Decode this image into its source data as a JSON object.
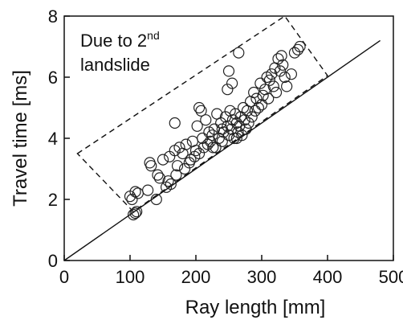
{
  "chart_data": {
    "type": "scatter",
    "xlabel": "Ray length [mm]",
    "ylabel": "Travel time [ms]",
    "xlim": [
      0,
      500
    ],
    "ylim": [
      0,
      8
    ],
    "xticks": [
      "0",
      "100",
      "200",
      "300",
      "400",
      "500"
    ],
    "yticks": [
      "0",
      "2",
      "4",
      "6",
      "8"
    ],
    "grid": false,
    "annotation": {
      "line1_main": "Due to 2",
      "line1_sup": "nd",
      "line2": "landslide"
    },
    "reference_line": {
      "x": [
        0,
        480
      ],
      "y": [
        0,
        7.2
      ]
    },
    "highlight_box": {
      "x": [
        20,
        335,
        400,
        105
      ],
      "y": [
        3.5,
        8.0,
        6.05,
        1.6
      ]
    },
    "points": {
      "x": [
        105,
        108,
        110,
        103,
        100,
        108,
        112,
        127,
        130,
        132,
        140,
        142,
        145,
        150,
        155,
        158,
        160,
        162,
        168,
        170,
        172,
        175,
        180,
        183,
        185,
        190,
        192,
        195,
        198,
        200,
        202,
        205,
        210,
        212,
        215,
        218,
        220,
        222,
        225,
        228,
        230,
        232,
        235,
        238,
        240,
        242,
        245,
        248,
        250,
        252,
        254,
        256,
        258,
        260,
        262,
        264,
        266,
        268,
        270,
        272,
        274,
        276,
        278,
        280,
        283,
        285,
        288,
        290,
        292,
        295,
        298,
        300,
        302,
        305,
        308,
        310,
        312,
        315,
        318,
        320,
        322,
        325,
        328,
        330,
        332,
        335,
        338,
        345,
        350,
        355,
        358,
        205,
        208,
        250,
        255,
        168,
        265,
        248,
        262,
        226,
        240
      ],
      "y": [
        1.5,
        1.55,
        1.6,
        2.0,
        2.1,
        2.25,
        2.2,
        2.3,
        3.2,
        3.1,
        2.0,
        2.8,
        2.7,
        3.3,
        2.4,
        2.6,
        3.4,
        2.5,
        3.6,
        2.8,
        3.1,
        3.7,
        3.5,
        3.0,
        3.8,
        3.2,
        3.3,
        3.9,
        3.4,
        3.6,
        4.4,
        3.5,
        4.0,
        3.7,
        4.6,
        3.8,
        4.2,
        3.9,
        4.1,
        4.3,
        3.7,
        4.8,
        4.0,
        4.5,
        3.9,
        4.2,
        4.7,
        4.4,
        4.1,
        4.9,
        4.3,
        4.6,
        4.0,
        4.8,
        4.5,
        4.2,
        4.4,
        4.7,
        4.1,
        5.0,
        4.6,
        4.3,
        4.9,
        4.5,
        5.2,
        4.7,
        5.5,
        4.9,
        5.3,
        5.0,
        5.8,
        5.1,
        5.4,
        5.6,
        6.0,
        5.3,
        5.9,
        6.1,
        5.7,
        6.3,
        5.5,
        6.6,
        6.2,
        6.7,
        6.4,
        6.0,
        5.7,
        6.1,
        6.8,
        6.9,
        7.0,
        5.0,
        4.9,
        6.2,
        5.8,
        4.5,
        6.8,
        5.6,
        4.0,
        3.7,
        4.3
      ]
    }
  }
}
